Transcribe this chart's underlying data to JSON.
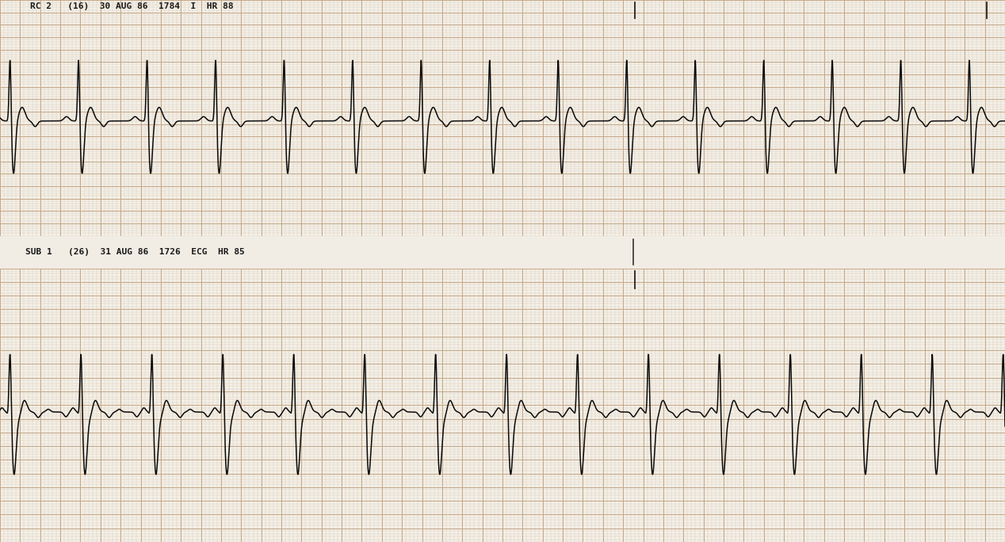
{
  "bg_color": "#f2ede4",
  "paper_color": "#f5f1e8",
  "grid_minor_color": "#d8c8b8",
  "grid_major_color": "#c4a888",
  "strip1_label": "RC 2   (16)  30 AUG 86  1784  I  HR 88",
  "strip2_label": "SUB 1   (26)  31 AUG 86  1726  ECG  HR 85",
  "label_color": "#1a1a1a",
  "ecg_color": "#0a0a0a",
  "separator_bg": "#e0d8cc",
  "fig_width": 12.68,
  "fig_height": 6.84,
  "minor_step": 0.04,
  "major_step": 0.2,
  "minor_lw": 0.3,
  "major_lw": 0.7,
  "ecg_lw": 1.1
}
